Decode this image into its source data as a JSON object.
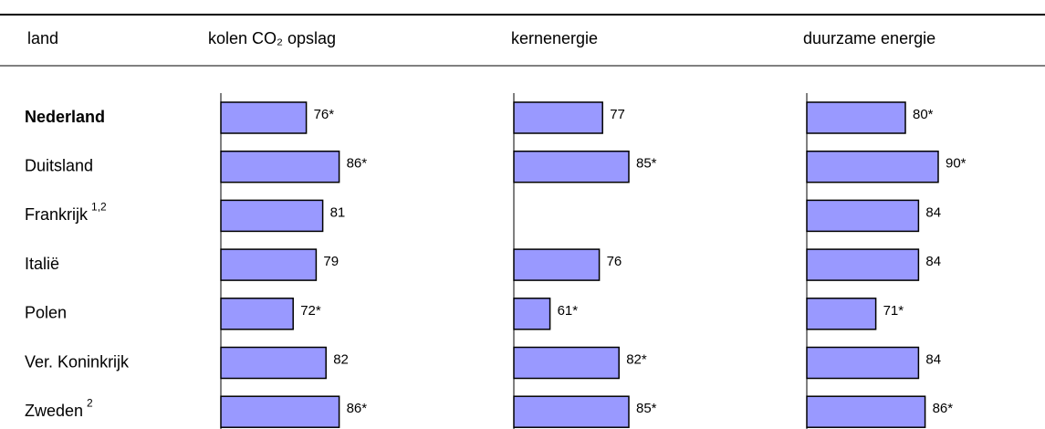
{
  "chart_data": {
    "type": "bar",
    "orientation": "horizontal",
    "category_header": "land",
    "categories": [
      "Nederland",
      "Duitsland",
      "Frankrijk",
      "Italië",
      "Polen",
      "Ver. Koninkrijk",
      "Zweden"
    ],
    "category_notes": [
      null,
      null,
      "1,2",
      null,
      null,
      null,
      "2"
    ],
    "highlight_index": 0,
    "xlim": [
      50,
      130
    ],
    "series": [
      {
        "name": "kolen CO₂ opslag",
        "color": "#9999ff",
        "values": [
          76,
          86,
          81,
          79,
          72,
          82,
          86
        ],
        "value_labels": [
          "76*",
          "86*",
          "81",
          "79",
          "72*",
          "82",
          "86*"
        ]
      },
      {
        "name": "kernenergie",
        "color": "#9999ff",
        "values": [
          77,
          85,
          null,
          76,
          61,
          82,
          85
        ],
        "value_labels": [
          "77",
          "85*",
          null,
          "76",
          "61*",
          "82*",
          "85*"
        ]
      },
      {
        "name": "duurzame energie",
        "color": "#9999ff",
        "values": [
          80,
          90,
          84,
          84,
          71,
          84,
          86
        ],
        "value_labels": [
          "80*",
          "90*",
          "84",
          "84",
          "71*",
          "84",
          "86*"
        ]
      }
    ]
  }
}
